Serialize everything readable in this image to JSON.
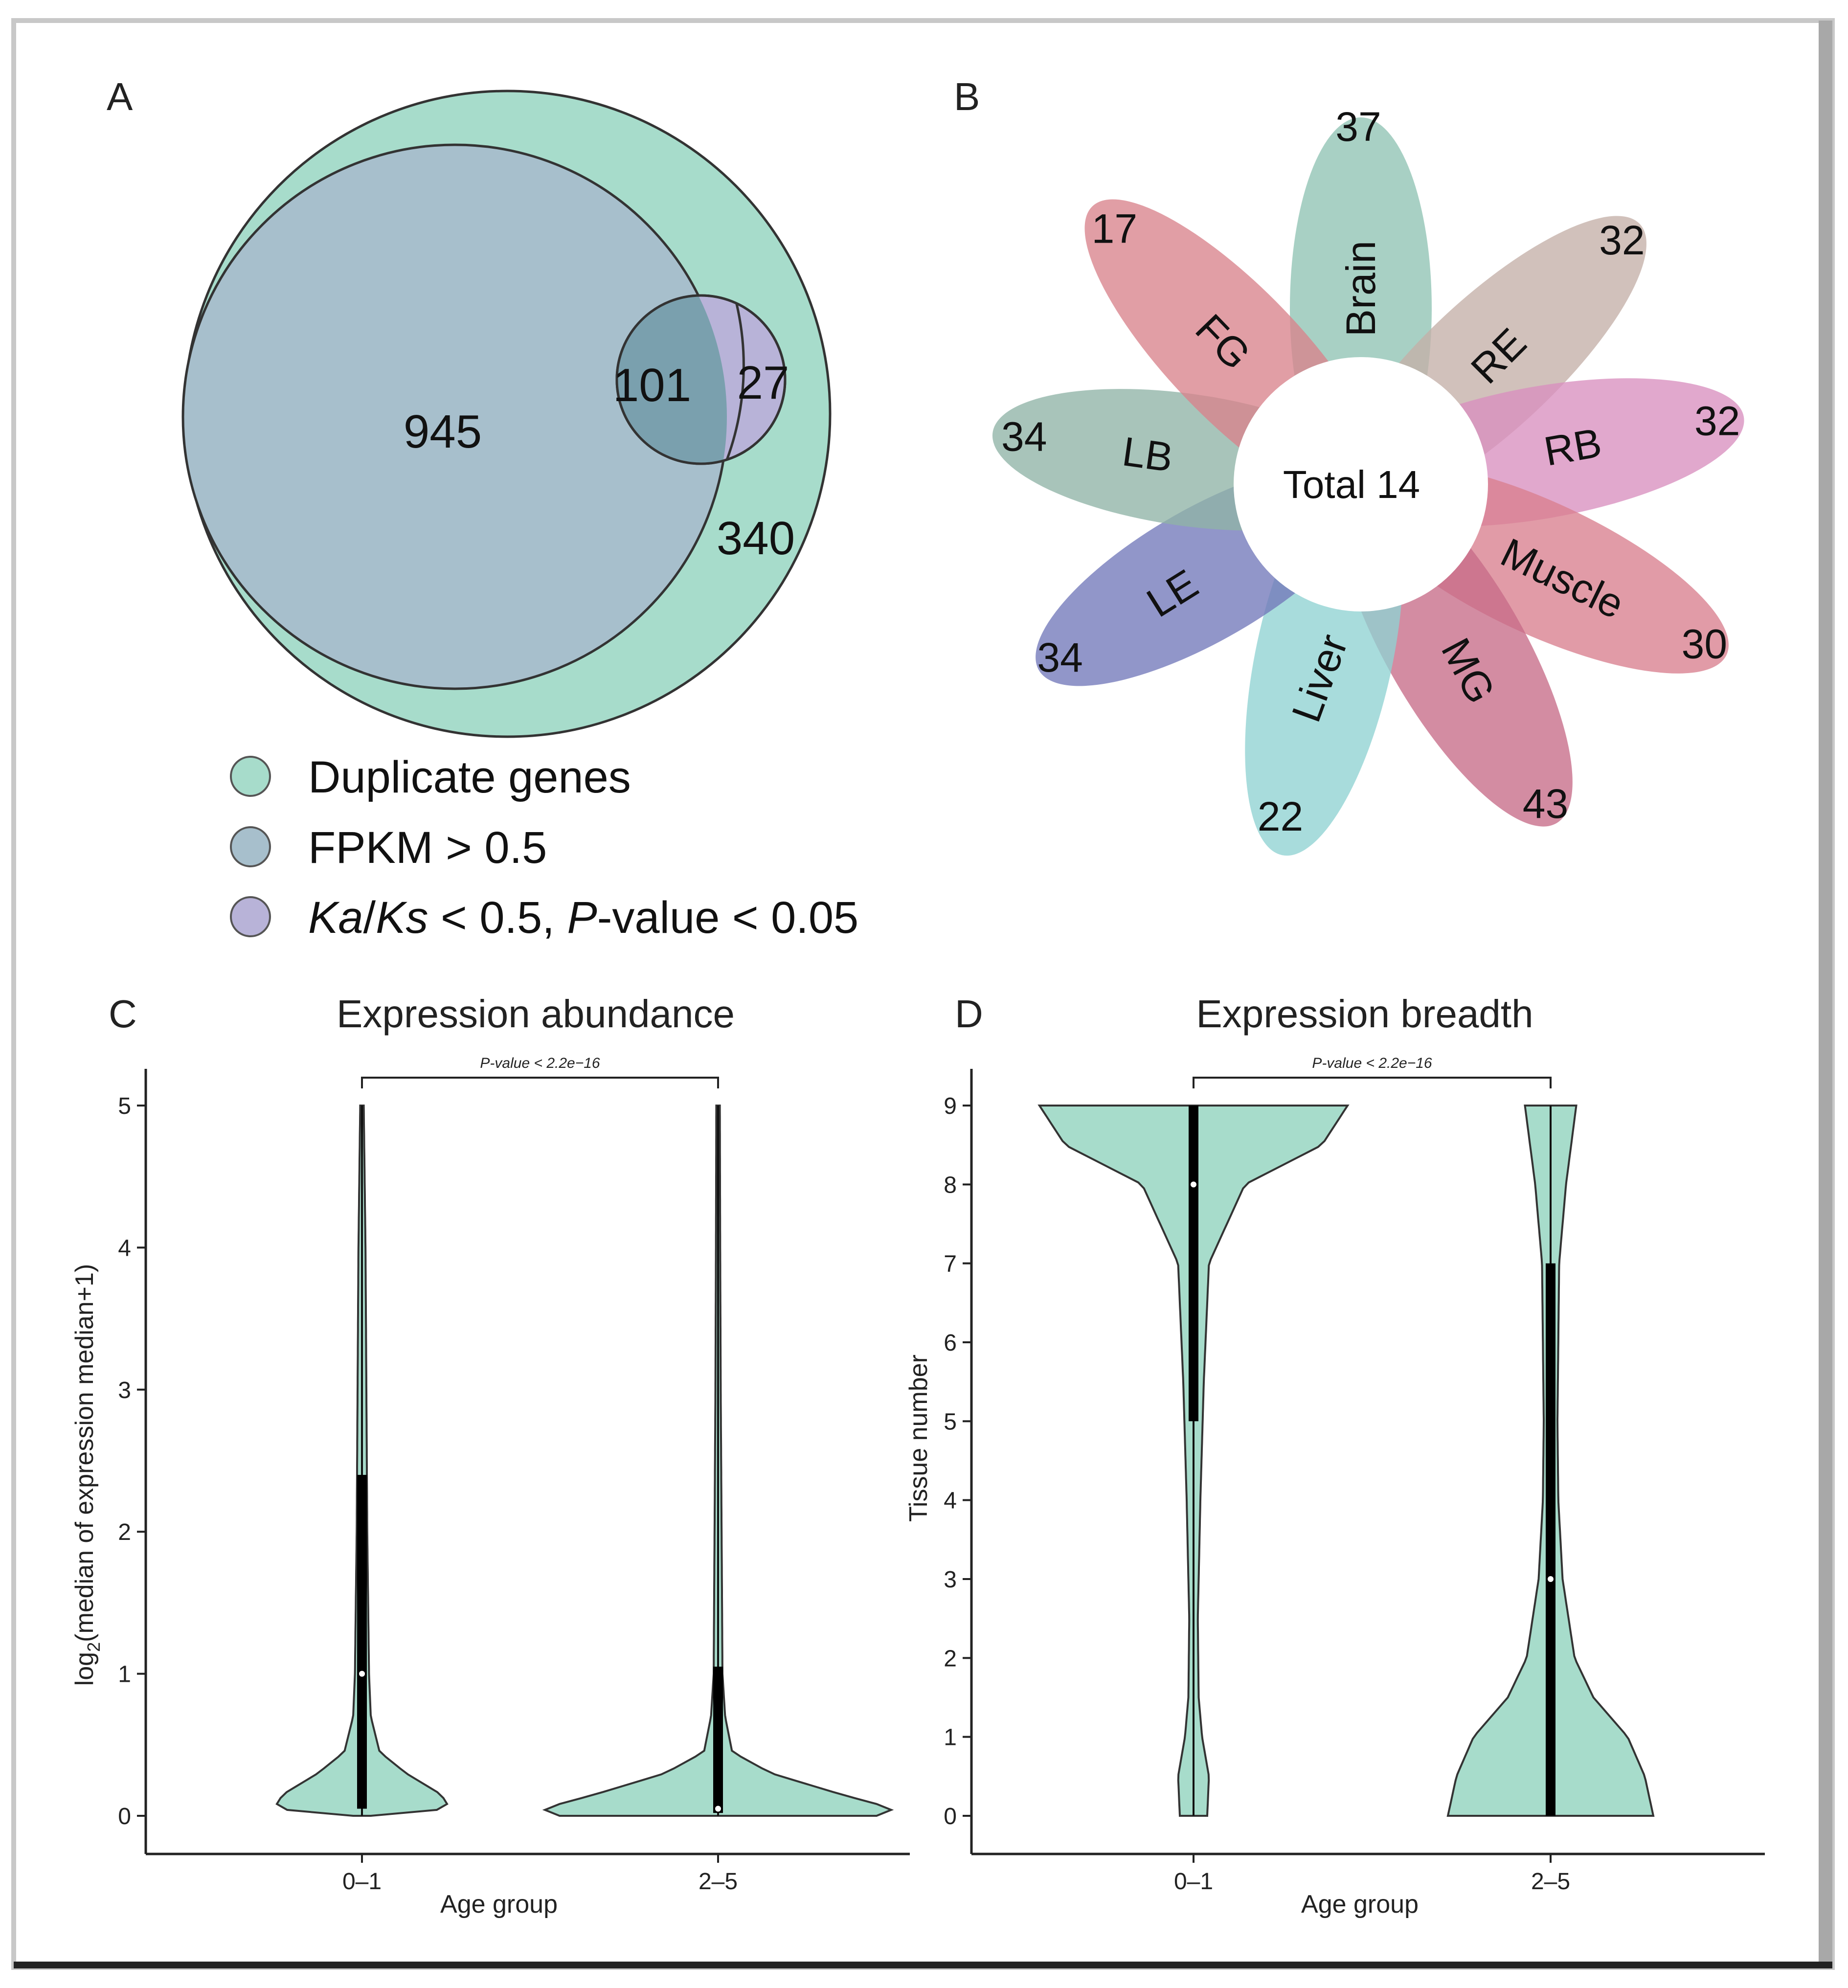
{
  "panels": {
    "A": "A",
    "B": "B",
    "C": "C",
    "D": "D"
  },
  "venn": {
    "only_duplicate": "340",
    "fpkm_only": "945",
    "fpkm_and_kaks": "101",
    "kaks_only": "27",
    "legend": [
      {
        "label": "Duplicate genes",
        "color": "#a7dccb"
      },
      {
        "label": "FPKM > 0.5",
        "color": "#a7bfcc"
      },
      {
        "label_parts": [
          "Ka",
          "/",
          "Ks",
          " < 0.5, ",
          "P",
          "-value < 0.05"
        ],
        "color": "#b8b3d8"
      }
    ],
    "colors": {
      "duplicate": "#a7dccb",
      "fpkm": "#a7bfcc",
      "kaks": "#b8b3d8",
      "overlap": "#7aa0ae"
    }
  },
  "flower": {
    "center_label": "Total 14",
    "petals": [
      {
        "name": "Brain",
        "value": "37",
        "color": "#8fc3b3"
      },
      {
        "name": "RE",
        "value": "32",
        "color": "#c4b0a8"
      },
      {
        "name": "RB",
        "value": "32",
        "color": "#d98fbf"
      },
      {
        "name": "Muscle",
        "value": "30",
        "color": "#d97f8e"
      },
      {
        "name": "MG",
        "value": "43",
        "color": "#c66b88"
      },
      {
        "name": "Liver",
        "value": "22",
        "color": "#8fd2d2"
      },
      {
        "name": "LE",
        "value": "34",
        "color": "#7279ba"
      },
      {
        "name": "LB",
        "value": "34",
        "color": "#8fb3a6"
      },
      {
        "name": "FG",
        "value": "17",
        "color": "#d9838c"
      }
    ]
  },
  "chart_data": [
    {
      "type": "violin",
      "panel": "C",
      "title": "Expression abundance",
      "xlabel": "Age group",
      "ylabel": "log2(median of expression median+1)",
      "ylabel_parts": [
        "log",
        "2",
        "(median of expression median+1)"
      ],
      "categories": [
        "0–1",
        "2–5"
      ],
      "ylim": [
        0,
        5
      ],
      "yticks": [
        "0",
        "1",
        "2",
        "3",
        "4",
        "5"
      ],
      "pvalue_label": "P-value < 2.2e−16",
      "fill": "#a7dccb",
      "groups": [
        {
          "name": "0–1",
          "min": 0,
          "max": 5,
          "median": 1.0,
          "q1": 0.05,
          "q3": 2.4,
          "density": [
            [
              0,
              0.05
            ],
            [
              0.05,
              0.5
            ],
            [
              0.15,
              0.45
            ],
            [
              0.3,
              0.25
            ],
            [
              0.45,
              0.1
            ],
            [
              0.7,
              0.05
            ],
            [
              1.0,
              0.04
            ],
            [
              2.0,
              0.03
            ],
            [
              3.0,
              0.025
            ],
            [
              4.0,
              0.02
            ],
            [
              5.0,
              0.01
            ]
          ]
        },
        {
          "name": "2–5",
          "min": 0,
          "max": 5,
          "median": 0.05,
          "q1": 0.02,
          "q3": 1.05,
          "density": [
            [
              0,
              0.9
            ],
            [
              0.05,
              1.0
            ],
            [
              0.15,
              0.7
            ],
            [
              0.3,
              0.3
            ],
            [
              0.45,
              0.08
            ],
            [
              0.7,
              0.04
            ],
            [
              1.0,
              0.025
            ],
            [
              2.0,
              0.02
            ],
            [
              3.0,
              0.015
            ],
            [
              4.0,
              0.012
            ],
            [
              5.0,
              0.01
            ]
          ]
        }
      ]
    },
    {
      "type": "violin",
      "panel": "D",
      "title": "Expression breadth",
      "xlabel": "Age group",
      "ylabel": "Tissue number",
      "categories": [
        "0–1",
        "2–5"
      ],
      "ylim": [
        0,
        9
      ],
      "yticks": [
        "0",
        "1",
        "2",
        "3",
        "4",
        "5",
        "6",
        "7",
        "8",
        "9"
      ],
      "pvalue_label": "P-value < 2.2e−16",
      "fill": "#a7dccb",
      "groups": [
        {
          "name": "0–1",
          "min": 0,
          "max": 9,
          "median": 8,
          "q1": 5,
          "q3": 9,
          "density": [
            [
              0,
              0.08
            ],
            [
              0.5,
              0.09
            ],
            [
              1.0,
              0.05
            ],
            [
              1.5,
              0.03
            ],
            [
              2.5,
              0.025
            ],
            [
              4,
              0.04
            ],
            [
              5.5,
              0.06
            ],
            [
              7,
              0.09
            ],
            [
              8,
              0.3
            ],
            [
              8.5,
              0.75
            ],
            [
              9,
              0.9
            ]
          ]
        },
        {
          "name": "2–5",
          "min": 0,
          "max": 9,
          "median": 3,
          "q1": 0,
          "q3": 7,
          "density": [
            [
              0,
              0.6
            ],
            [
              0.5,
              0.55
            ],
            [
              1.0,
              0.45
            ],
            [
              1.5,
              0.25
            ],
            [
              2,
              0.14
            ],
            [
              3,
              0.07
            ],
            [
              4,
              0.045
            ],
            [
              5,
              0.04
            ],
            [
              6,
              0.045
            ],
            [
              7,
              0.05
            ],
            [
              8,
              0.09
            ],
            [
              9,
              0.15
            ]
          ]
        }
      ]
    }
  ]
}
